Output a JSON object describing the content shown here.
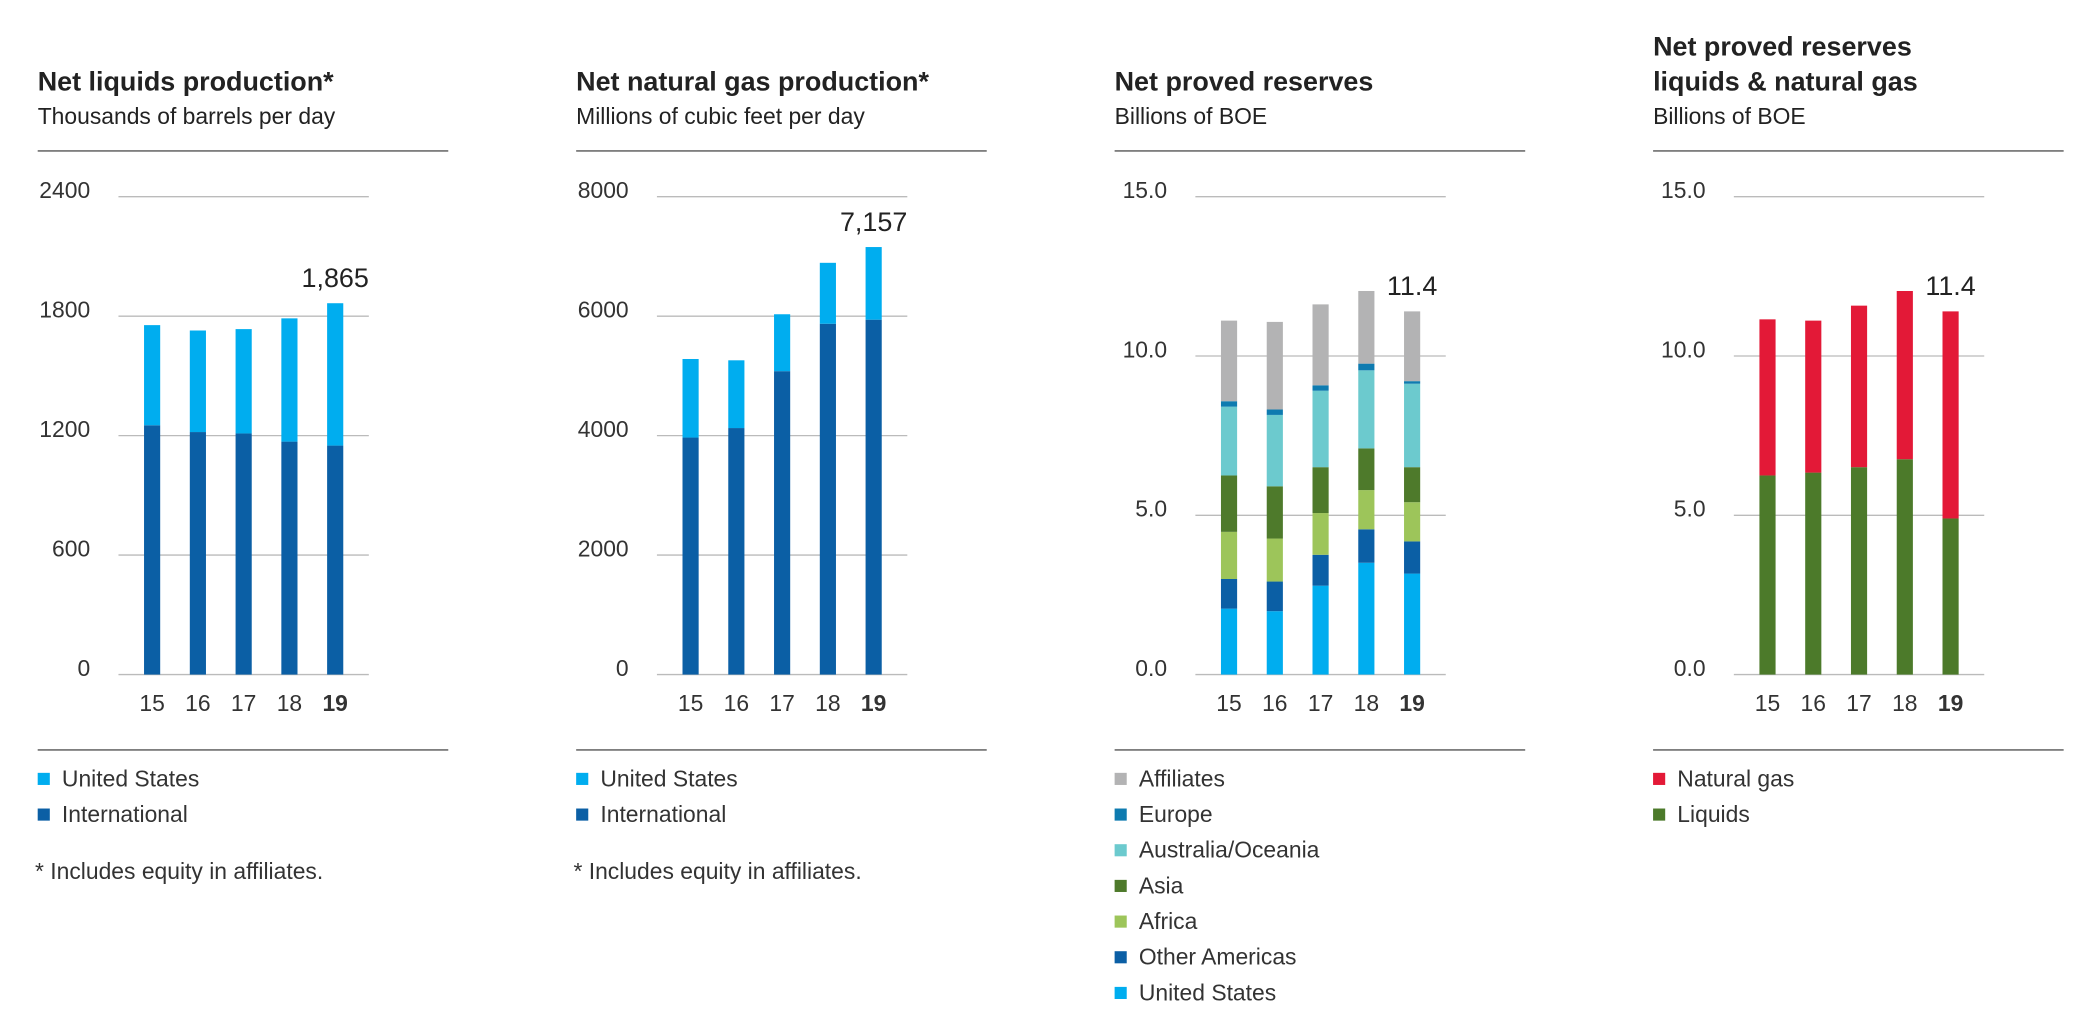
{
  "chart_data": [
    {
      "type": "bar",
      "stacked": true,
      "title": "Net liquids production*",
      "subtitle": "Thousands of barrels per day",
      "categories": [
        "15",
        "16",
        "17",
        "18",
        "19"
      ],
      "highlight": "19",
      "series": [
        {
          "name": "United States",
          "color": "#00adef",
          "values": [
            503,
            510,
            524,
            619,
            715
          ]
        },
        {
          "name": "International",
          "color": "#0b5fa5",
          "values": [
            1252,
            1218,
            1211,
            1170,
            1150
          ]
        }
      ],
      "annotation": {
        "value": 1865,
        "label": "1,865"
      },
      "ylim": [
        0,
        2400
      ],
      "yticks": [
        0,
        600,
        1200,
        1800,
        2400
      ],
      "grid": true,
      "footnote": "* Includes equity in affiliates."
    },
    {
      "type": "bar",
      "stacked": true,
      "title": "Net natural gas production*",
      "subtitle": "Millions of cubic feet per day",
      "categories": [
        "15",
        "16",
        "17",
        "18",
        "19"
      ],
      "highlight": "19",
      "series": [
        {
          "name": "United States",
          "color": "#00adef",
          "values": [
            1315,
            1134,
            953,
            1020,
            1216
          ]
        },
        {
          "name": "International",
          "color": "#0b5fa5",
          "values": [
            3968,
            4127,
            5079,
            5873,
            5941
          ]
        }
      ],
      "annotation": {
        "value": 7157,
        "label": "7,157"
      },
      "ylim": [
        0,
        8000
      ],
      "yticks": [
        0,
        2000,
        4000,
        6000,
        8000
      ],
      "grid": true,
      "footnote": "* Includes equity in affiliates."
    },
    {
      "type": "bar",
      "stacked": true,
      "title": "Net proved reserves",
      "subtitle": "Billions of BOE",
      "categories": [
        "15",
        "16",
        "17",
        "18",
        "19"
      ],
      "highlight": "19",
      "series": [
        {
          "name": "Affiliates",
          "color": "#b3b3b4",
          "values": [
            2.53,
            2.75,
            2.54,
            2.28,
            2.19
          ]
        },
        {
          "name": "Europe",
          "color": "#0e7bb0",
          "values": [
            0.17,
            0.17,
            0.17,
            0.21,
            0.08
          ]
        },
        {
          "name": "Australia/Oceania",
          "color": "#6ccace",
          "values": [
            2.16,
            2.24,
            2.4,
            2.45,
            2.62
          ]
        },
        {
          "name": "Asia",
          "color": "#4e7a2b",
          "values": [
            1.77,
            1.64,
            1.44,
            1.31,
            1.1
          ]
        },
        {
          "name": "Africa",
          "color": "#9dc55a",
          "values": [
            1.48,
            1.35,
            1.31,
            1.23,
            1.23
          ]
        },
        {
          "name": "Other Americas",
          "color": "#0b5fa5",
          "values": [
            0.93,
            0.93,
            0.97,
            1.05,
            1.01
          ]
        },
        {
          "name": "United States",
          "color": "#00adef",
          "values": [
            2.07,
            1.99,
            2.79,
            3.51,
            3.17
          ]
        }
      ],
      "annotation": {
        "value": 11.4,
        "label": "11.4"
      },
      "ylim": [
        0,
        15
      ],
      "yticks": [
        {
          "value": 0,
          "label": "0.0"
        },
        {
          "value": 5,
          "label": "5.0"
        },
        {
          "value": 10,
          "label": "10.0"
        },
        {
          "value": 15,
          "label": "15.0"
        }
      ],
      "grid": true
    },
    {
      "type": "bar",
      "stacked": true,
      "title": [
        "Net proved reserves",
        "liquids & natural gas"
      ],
      "subtitle": "Billions of BOE",
      "categories": [
        "15",
        "16",
        "17",
        "18",
        "19"
      ],
      "highlight": "19",
      "series": [
        {
          "name": "Natural gas",
          "color": "#e31937",
          "values": [
            4.9,
            4.77,
            5.07,
            5.28,
            6.5
          ]
        },
        {
          "name": "Liquids",
          "color": "#4c7a2a",
          "values": [
            6.25,
            6.34,
            6.51,
            6.76,
            4.9
          ]
        }
      ],
      "annotation": {
        "value": 11.4,
        "label": "11.4"
      },
      "ylim": [
        0,
        15
      ],
      "yticks": [
        {
          "value": 0,
          "label": "0.0"
        },
        {
          "value": 5,
          "label": "5.0"
        },
        {
          "value": 10,
          "label": "10.0"
        },
        {
          "value": 15,
          "label": "15.0"
        }
      ],
      "grid": true
    }
  ]
}
